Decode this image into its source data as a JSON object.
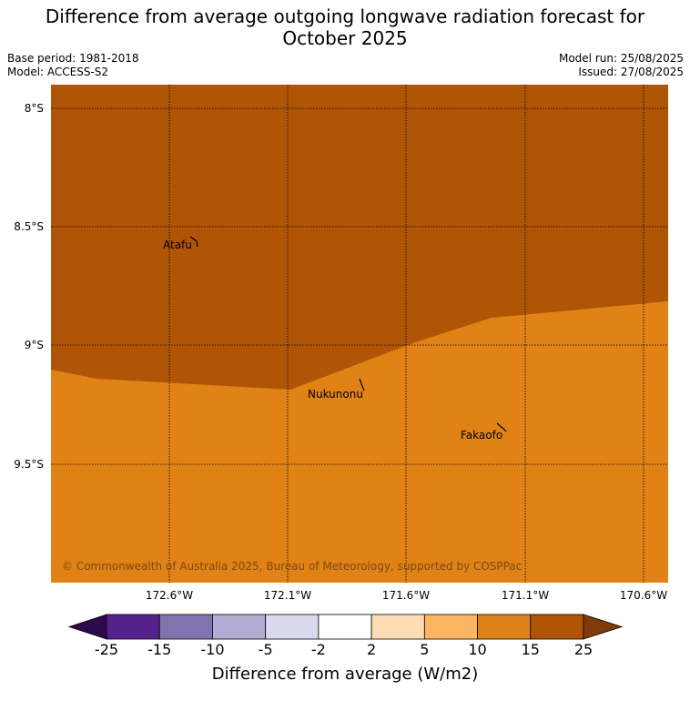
{
  "title_line1": "Difference from average outgoing longwave radiation forecast for",
  "title_line2": "October 2025",
  "base_period": "Base period: 1981-2018",
  "model": "Model: ACCESS-S2",
  "model_run": "Model run: 25/08/2025",
  "issued": "Issued: 27/08/2025",
  "lat_labels": [
    "8°S",
    "8.5°S",
    "9°S",
    "9.5°S"
  ],
  "lon_labels": [
    "172.6°W",
    "172.1°W",
    "171.6°W",
    "171.1°W",
    "170.6°W"
  ],
  "places": {
    "atafu": "Atafu",
    "nukunonu": "Nukunonu",
    "fakaofo": "Fakaofo"
  },
  "copyright": "© Commonwealth of Australia 2025, Bureau of Meteorology, supported by COSPPac",
  "colorbar": {
    "title": "Difference from average (W/m2)",
    "ticks": [
      "-25",
      "-15",
      "-10",
      "-5",
      "-2",
      "2",
      "5",
      "10",
      "15",
      "25"
    ],
    "colors": [
      "#2d0a4e",
      "#55228b",
      "#8174ae",
      "#b2abd2",
      "#d9d9ee",
      "#ffffff",
      "#fddcb3",
      "#fbb563",
      "#e0821a",
      "#b05506",
      "#7f3b08"
    ]
  },
  "map_colors": {
    "band_15_25": "#b05506",
    "band_10_15": "#e08215"
  }
}
